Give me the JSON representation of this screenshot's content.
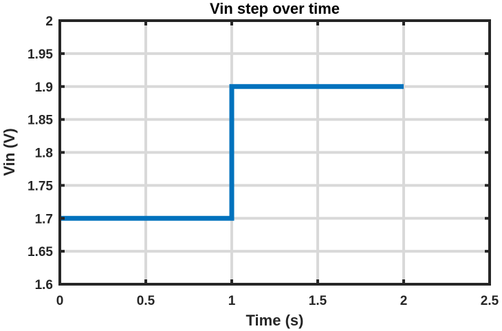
{
  "chart_data": {
    "type": "line",
    "title": "Vin step over time",
    "xlabel": "Time (s)",
    "ylabel": "Vin (V)",
    "xlim": [
      0,
      2.5
    ],
    "ylim": [
      1.6,
      2
    ],
    "x_ticks": [
      0,
      0.5,
      1,
      1.5,
      2,
      2.5
    ],
    "x_tick_labels": [
      "0",
      "0.5",
      "1",
      "1.5",
      "2",
      "2.5"
    ],
    "y_ticks": [
      1.6,
      1.65,
      1.7,
      1.75,
      1.8,
      1.85,
      1.9,
      1.95,
      2
    ],
    "y_tick_labels": [
      "1.6",
      "1.65",
      "1.7",
      "1.75",
      "1.8",
      "1.85",
      "1.9",
      "1.95",
      "2"
    ],
    "grid": true,
    "series": [
      {
        "color": "#0072BD",
        "x": [
          0,
          1,
          1,
          2
        ],
        "y": [
          1.7,
          1.7,
          1.9,
          1.9
        ]
      }
    ]
  }
}
